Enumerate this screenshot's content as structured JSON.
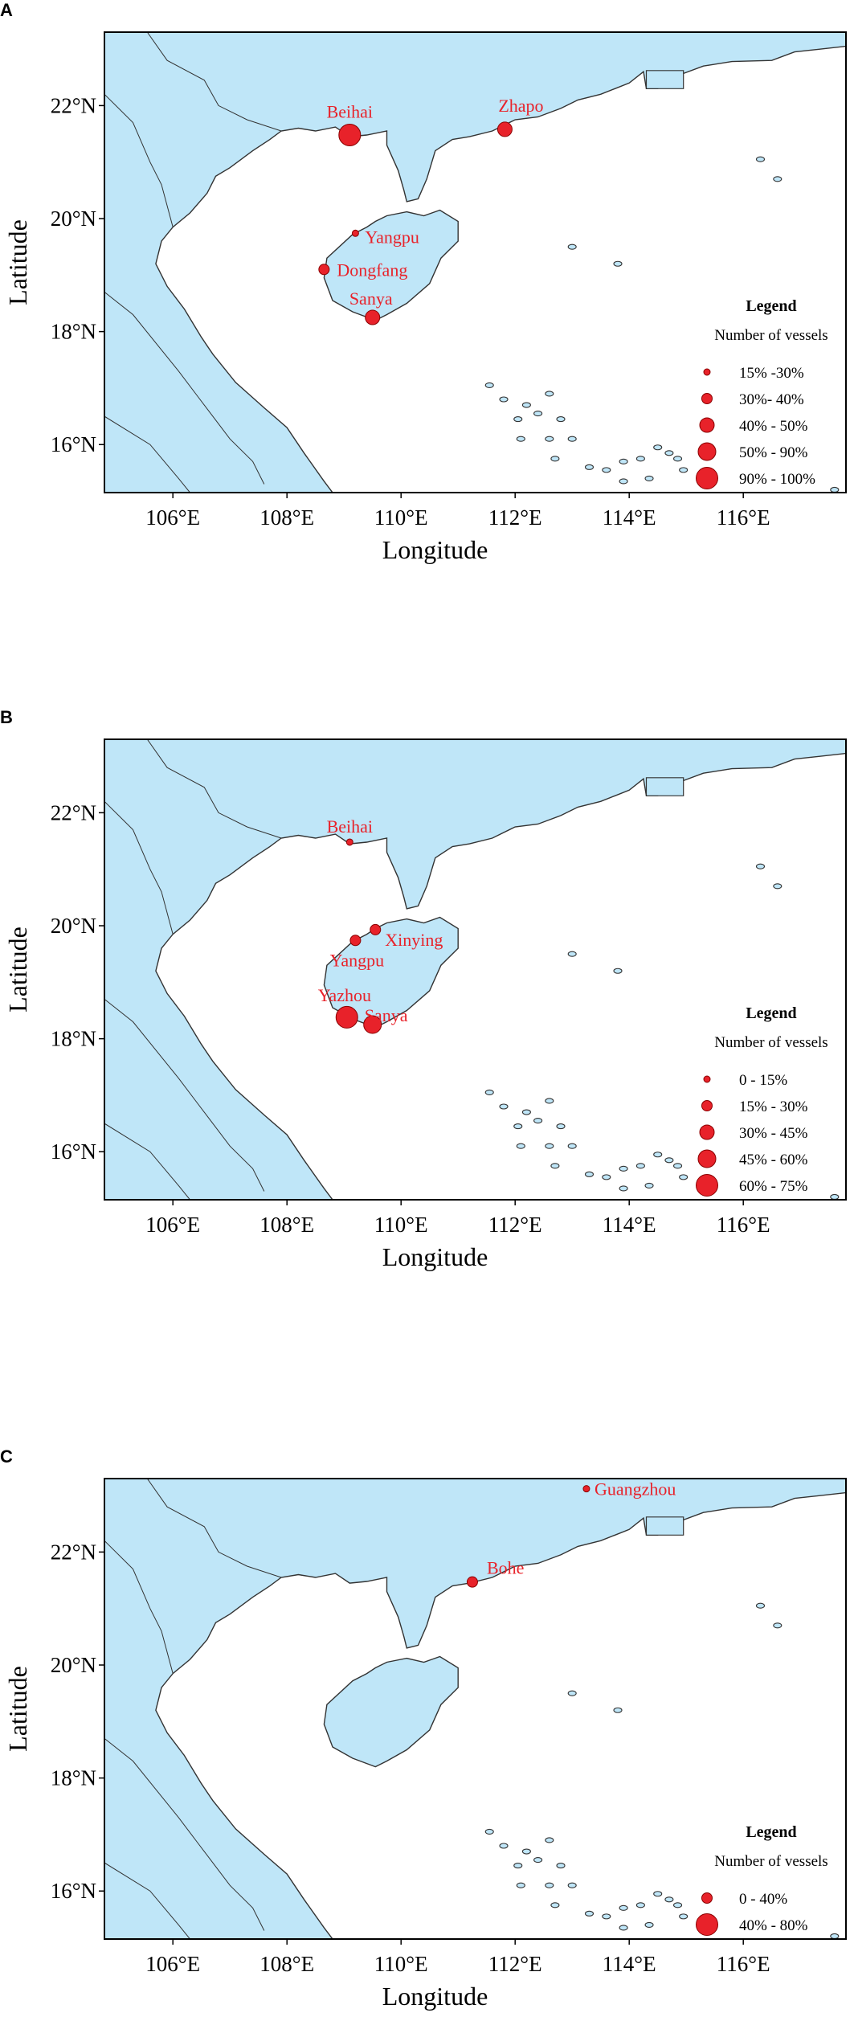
{
  "colors": {
    "land": "#bfe6f8",
    "sea": "#ffffff",
    "coast": "#333333",
    "marker": "#e8222a",
    "marker_stroke": "#8a0000"
  },
  "axes": {
    "xlabel": "Longitude",
    "ylabel": "Latitude",
    "lon_ticks": [
      "106°E",
      "108°E",
      "110°E",
      "112°E",
      "114°E",
      "116°E"
    ],
    "lat_ticks": [
      "22°N",
      "20°N",
      "18°N",
      "16°N"
    ]
  },
  "panels": [
    {
      "letter": "A",
      "legend_title": "Legend",
      "legend_subtitle": "Number of vessels",
      "legend_items": [
        "15% -30%",
        "30%- 40%",
        "40% - 50%",
        "50% - 90%",
        "90% - 100%"
      ],
      "ports": [
        {
          "name": "Beihai",
          "lon": 109.1,
          "lat": 21.48,
          "size": 5
        },
        {
          "name": "Zhapo",
          "lon": 111.82,
          "lat": 21.58,
          "size": 3
        },
        {
          "name": "Yangpu",
          "lon": 109.2,
          "lat": 19.74,
          "size": 1
        },
        {
          "name": "Dongfang",
          "lon": 108.65,
          "lat": 19.1,
          "size": 2
        },
        {
          "name": "Sanya",
          "lon": 109.5,
          "lat": 18.25,
          "size": 3
        }
      ]
    },
    {
      "letter": "B",
      "legend_title": "Legend",
      "legend_subtitle": "Number of vessels",
      "legend_items": [
        "0 - 15%",
        "15% - 30%",
        "30% - 45%",
        "45% - 60%",
        "60% - 75%"
      ],
      "ports": [
        {
          "name": "Beihai",
          "lon": 109.1,
          "lat": 21.48,
          "size": 1
        },
        {
          "name": "Xinying",
          "lon": 109.55,
          "lat": 19.93,
          "size": 2
        },
        {
          "name": "Yangpu",
          "lon": 109.2,
          "lat": 19.74,
          "size": 2
        },
        {
          "name": "Yazhou",
          "lon": 109.05,
          "lat": 18.38,
          "size": 5
        },
        {
          "name": "Sanya",
          "lon": 109.5,
          "lat": 18.25,
          "size": 4
        }
      ]
    },
    {
      "letter": "C",
      "legend_title": "Legend",
      "legend_subtitle": "Number of vessels",
      "legend_items": [
        "0 - 40%",
        "40% - 80%"
      ],
      "ports": [
        {
          "name": "Guangzhou",
          "lon": 113.25,
          "lat": 23.12,
          "size": 1
        },
        {
          "name": "Bohe",
          "lon": 111.25,
          "lat": 21.47,
          "size": 2
        }
      ]
    }
  ]
}
